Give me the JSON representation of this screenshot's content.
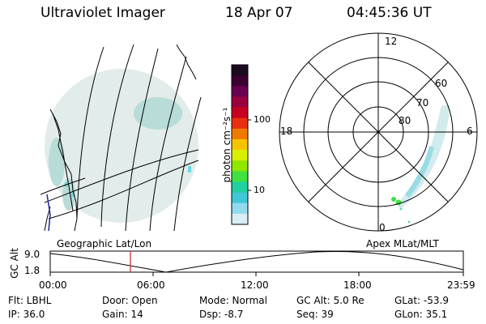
{
  "header": {
    "title": "Ultraviolet Imager",
    "date": "18 Apr 07",
    "time": "04:45:36 UT"
  },
  "colorbar": {
    "label": "photon cm⁻²s⁻¹",
    "ticks": [
      "100",
      "10"
    ],
    "colors_top_to_bottom": [
      "#1a0a20",
      "#3a0030",
      "#6a0050",
      "#9a0040",
      "#c80020",
      "#e83010",
      "#f07a00",
      "#f5c400",
      "#d8f000",
      "#90e800",
      "#40e040",
      "#20d0a0",
      "#40c8d8",
      "#90dcec",
      "#d8eef4"
    ]
  },
  "polar": {
    "mlt_labels": [
      "12",
      "18",
      "6",
      "0"
    ],
    "lat_labels": [
      "60",
      "70",
      "80"
    ]
  },
  "timeline": {
    "ylabel": "GC Alt",
    "left_label": "Geographic Lat/Lon",
    "right_label": "Apex  MLat/MLT",
    "y_ticks": [
      "9.0",
      "1.8"
    ],
    "x_ticks": [
      "00:00",
      "06:00",
      "12:00",
      "18:00",
      "23:59"
    ],
    "marker_color": "#d02020"
  },
  "info": {
    "flt": "Flt: LBHL",
    "ip": "IP: 36.0",
    "door": "Door: Open",
    "gain": "Gain: 14",
    "mode": "Mode: Normal",
    "dsp": "Dsp:    -8.7",
    "gcalt": "GC Alt: 5.0 Re",
    "seq": "Seq: 39",
    "glat": "GLat:  -53.9",
    "glon": "GLon:   35.1"
  }
}
